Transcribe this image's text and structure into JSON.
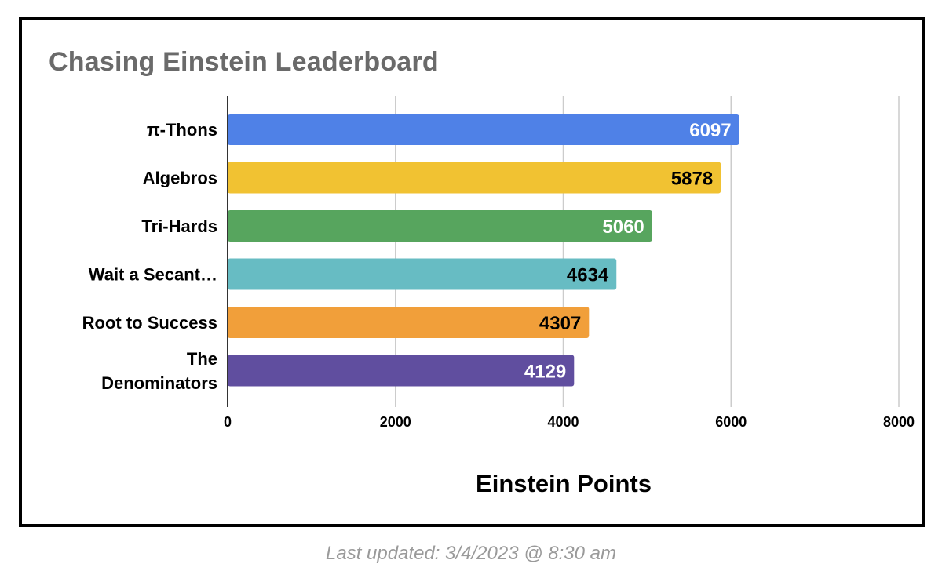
{
  "chart_data": {
    "type": "bar",
    "orientation": "horizontal",
    "title": "Chasing Einstein Leaderboard",
    "xlabel": "Einstein Points",
    "ylabel": "",
    "xlim": [
      0,
      8000
    ],
    "ticks": [
      "0",
      "2000",
      "4000",
      "6000",
      "8000"
    ],
    "tick_values": [
      0,
      2000,
      4000,
      6000,
      8000
    ],
    "grid": true,
    "legend": "none",
    "categories": [
      {
        "label_lines": [
          "π-Thons"
        ]
      },
      {
        "label_lines": [
          "Algebros"
        ]
      },
      {
        "label_lines": [
          "Tri-Hards"
        ]
      },
      {
        "label_lines": [
          "Wait a Secant…"
        ]
      },
      {
        "label_lines": [
          "Root to Success"
        ]
      },
      {
        "label_lines": [
          "The",
          "Denominators"
        ]
      }
    ],
    "values": [
      6097,
      5878,
      5060,
      4634,
      4307,
      4129
    ],
    "bar_colors": [
      "#4f81e7",
      "#f1c232",
      "#57a55e",
      "#67bcc3",
      "#f19f3a",
      "#604e9f"
    ],
    "label_colors": [
      "#ffffff",
      "#000000",
      "#ffffff",
      "#000000",
      "#000000",
      "#ffffff"
    ]
  },
  "footer": {
    "text": "Last updated: 3/4/2023 @ 8:30 am"
  }
}
